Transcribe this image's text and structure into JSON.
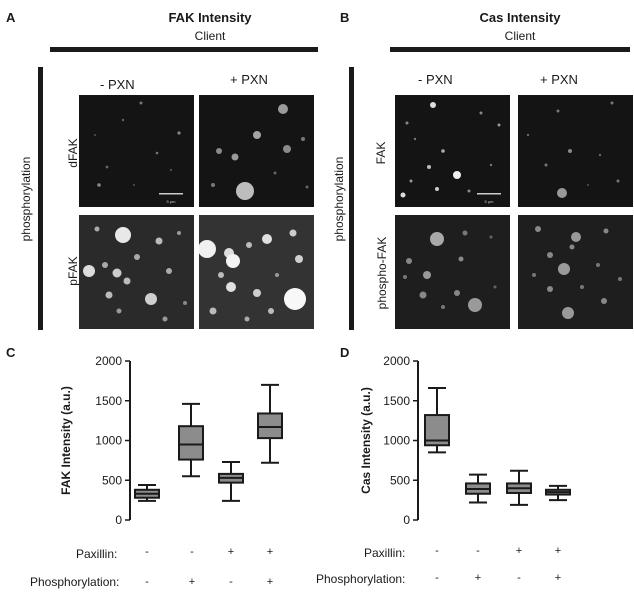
{
  "panelA": {
    "letter": "A",
    "title": "FAK Intensity",
    "client": "Client",
    "side_label": "phosphorylation",
    "col_minus": "-   PXN",
    "col_plus": "+   PXN",
    "row_top": "dFAK",
    "row_bottom": "pFAK",
    "scalebar": "5 μm"
  },
  "panelB": {
    "letter": "B",
    "title": "Cas Intensity",
    "client": "Client",
    "side_label": "phosphorylation",
    "col_minus": "-   PXN",
    "col_plus": "+   PXN",
    "row_top": "FAK",
    "row_bottom": "phospho-FAK",
    "scalebar": "5 μm"
  },
  "chart_data": [
    {
      "panel": "C",
      "type": "box",
      "ylabel": "FAK Intensity (a.u.)",
      "ylim": [
        0,
        2000
      ],
      "yticks": [
        0,
        500,
        1000,
        1500,
        2000
      ],
      "boxes": [
        {
          "min": 240,
          "q1": 280,
          "median": 330,
          "q3": 380,
          "max": 440
        },
        {
          "min": 550,
          "q1": 760,
          "median": 950,
          "q3": 1180,
          "max": 1460
        },
        {
          "min": 240,
          "q1": 470,
          "median": 530,
          "q3": 580,
          "max": 730
        },
        {
          "min": 720,
          "q1": 1030,
          "median": 1170,
          "q3": 1340,
          "max": 1700
        }
      ],
      "rows": [
        {
          "label": "Paxillin:",
          "values": [
            "-",
            "-",
            "+",
            "+"
          ]
        },
        {
          "label": "Phosphorylation:",
          "values": [
            "-",
            "+",
            "-",
            "+"
          ]
        }
      ]
    },
    {
      "panel": "D",
      "type": "box",
      "ylabel": "Cas Intensity (a.u.)",
      "ylim": [
        0,
        2000
      ],
      "yticks": [
        0,
        500,
        1000,
        1500,
        2000
      ],
      "boxes": [
        {
          "min": 850,
          "q1": 940,
          "median": 1000,
          "q3": 1320,
          "max": 1660
        },
        {
          "min": 220,
          "q1": 330,
          "median": 390,
          "q3": 460,
          "max": 570
        },
        {
          "min": 190,
          "q1": 340,
          "median": 400,
          "q3": 460,
          "max": 620
        },
        {
          "min": 250,
          "q1": 320,
          "median": 350,
          "q3": 380,
          "max": 430
        }
      ],
      "rows": [
        {
          "label": "Paxillin:",
          "values": [
            "-",
            "-",
            "+",
            "+"
          ]
        },
        {
          "label": "Phosphorylation:",
          "values": [
            "-",
            "+",
            "-",
            "+"
          ]
        }
      ]
    }
  ],
  "panelC": {
    "letter": "C"
  },
  "panelD": {
    "letter": "D"
  },
  "colors": {
    "box_fill": "#8c8c8c",
    "ink": "#1a1a1a"
  }
}
